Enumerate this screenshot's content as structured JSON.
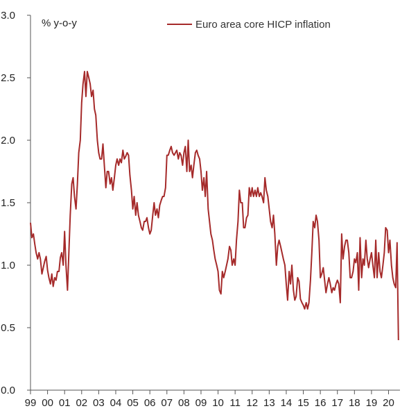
{
  "chart_data": {
    "type": "line",
    "title": "",
    "unit_label": "% y-o-y",
    "xlabel": "",
    "ylabel": "",
    "ylim": [
      0.0,
      3.0
    ],
    "yticks": [
      "0.0",
      "0.5",
      "1.0",
      "1.5",
      "2.0",
      "2.5",
      "3.0"
    ],
    "xlim": [
      1999.0,
      2020.67
    ],
    "xticks": [
      "99",
      "00",
      "01",
      "02",
      "03",
      "04",
      "05",
      "06",
      "07",
      "08",
      "09",
      "10",
      "11",
      "12",
      "13",
      "14",
      "15",
      "16",
      "17",
      "18",
      "19",
      "20"
    ],
    "grid": false,
    "legend_position": "top-right",
    "series": [
      {
        "name": "Euro area core HICP inflation",
        "color": "#a52a2a",
        "points": [
          [
            1999.0,
            1.34
          ],
          [
            1999.08,
            1.22
          ],
          [
            1999.17,
            1.25
          ],
          [
            1999.25,
            1.17
          ],
          [
            1999.33,
            1.1
          ],
          [
            1999.42,
            1.05
          ],
          [
            1999.5,
            1.1
          ],
          [
            1999.58,
            1.05
          ],
          [
            1999.67,
            0.93
          ],
          [
            1999.75,
            0.98
          ],
          [
            1999.83,
            1.03
          ],
          [
            1999.92,
            1.07
          ],
          [
            2000.0,
            0.96
          ],
          [
            2000.08,
            0.9
          ],
          [
            2000.17,
            0.85
          ],
          [
            2000.25,
            0.93
          ],
          [
            2000.33,
            0.83
          ],
          [
            2000.42,
            0.9
          ],
          [
            2000.5,
            0.88
          ],
          [
            2000.58,
            0.95
          ],
          [
            2000.67,
            0.95
          ],
          [
            2000.75,
            1.06
          ],
          [
            2000.83,
            1.1
          ],
          [
            2000.92,
            1.0
          ],
          [
            2001.0,
            1.27
          ],
          [
            2001.08,
            1.0
          ],
          [
            2001.17,
            0.8
          ],
          [
            2001.25,
            1.1
          ],
          [
            2001.33,
            1.4
          ],
          [
            2001.42,
            1.65
          ],
          [
            2001.5,
            1.7
          ],
          [
            2001.58,
            1.55
          ],
          [
            2001.67,
            1.45
          ],
          [
            2001.75,
            1.65
          ],
          [
            2001.83,
            1.9
          ],
          [
            2001.92,
            2.0
          ],
          [
            2002.0,
            2.3
          ],
          [
            2002.08,
            2.45
          ],
          [
            2002.17,
            2.55
          ],
          [
            2002.25,
            2.35
          ],
          [
            2002.33,
            2.55
          ],
          [
            2002.42,
            2.5
          ],
          [
            2002.5,
            2.45
          ],
          [
            2002.58,
            2.35
          ],
          [
            2002.67,
            2.4
          ],
          [
            2002.75,
            2.25
          ],
          [
            2002.83,
            2.2
          ],
          [
            2002.92,
            2.0
          ],
          [
            2003.0,
            1.9
          ],
          [
            2003.08,
            1.85
          ],
          [
            2003.17,
            1.85
          ],
          [
            2003.25,
            1.97
          ],
          [
            2003.33,
            1.8
          ],
          [
            2003.42,
            1.62
          ],
          [
            2003.5,
            1.75
          ],
          [
            2003.58,
            1.75
          ],
          [
            2003.67,
            1.65
          ],
          [
            2003.75,
            1.7
          ],
          [
            2003.83,
            1.6
          ],
          [
            2003.92,
            1.7
          ],
          [
            2004.0,
            1.8
          ],
          [
            2004.08,
            1.85
          ],
          [
            2004.17,
            1.8
          ],
          [
            2004.25,
            1.85
          ],
          [
            2004.33,
            1.82
          ],
          [
            2004.42,
            1.92
          ],
          [
            2004.5,
            1.85
          ],
          [
            2004.58,
            1.87
          ],
          [
            2004.67,
            1.9
          ],
          [
            2004.75,
            1.88
          ],
          [
            2004.83,
            1.72
          ],
          [
            2004.92,
            1.6
          ],
          [
            2005.0,
            1.45
          ],
          [
            2005.08,
            1.55
          ],
          [
            2005.17,
            1.4
          ],
          [
            2005.25,
            1.5
          ],
          [
            2005.33,
            1.4
          ],
          [
            2005.42,
            1.35
          ],
          [
            2005.5,
            1.3
          ],
          [
            2005.58,
            1.28
          ],
          [
            2005.67,
            1.35
          ],
          [
            2005.75,
            1.35
          ],
          [
            2005.83,
            1.38
          ],
          [
            2005.92,
            1.3
          ],
          [
            2006.0,
            1.25
          ],
          [
            2006.08,
            1.28
          ],
          [
            2006.17,
            1.4
          ],
          [
            2006.25,
            1.5
          ],
          [
            2006.33,
            1.4
          ],
          [
            2006.42,
            1.45
          ],
          [
            2006.5,
            1.38
          ],
          [
            2006.58,
            1.48
          ],
          [
            2006.67,
            1.52
          ],
          [
            2006.75,
            1.55
          ],
          [
            2006.83,
            1.55
          ],
          [
            2006.92,
            1.62
          ],
          [
            2007.0,
            1.88
          ],
          [
            2007.08,
            1.88
          ],
          [
            2007.17,
            1.92
          ],
          [
            2007.25,
            1.95
          ],
          [
            2007.33,
            1.9
          ],
          [
            2007.42,
            1.88
          ],
          [
            2007.5,
            1.9
          ],
          [
            2007.58,
            1.92
          ],
          [
            2007.67,
            1.85
          ],
          [
            2007.75,
            1.9
          ],
          [
            2007.83,
            1.88
          ],
          [
            2007.92,
            1.8
          ],
          [
            2008.0,
            1.9
          ],
          [
            2008.08,
            1.95
          ],
          [
            2008.17,
            1.75
          ],
          [
            2008.25,
            2.0
          ],
          [
            2008.33,
            1.75
          ],
          [
            2008.42,
            1.8
          ],
          [
            2008.5,
            1.7
          ],
          [
            2008.58,
            1.8
          ],
          [
            2008.67,
            1.9
          ],
          [
            2008.75,
            1.92
          ],
          [
            2008.83,
            1.88
          ],
          [
            2008.92,
            1.85
          ],
          [
            2009.0,
            1.75
          ],
          [
            2009.08,
            1.6
          ],
          [
            2009.17,
            1.7
          ],
          [
            2009.25,
            1.55
          ],
          [
            2009.33,
            1.75
          ],
          [
            2009.42,
            1.45
          ],
          [
            2009.5,
            1.35
          ],
          [
            2009.58,
            1.25
          ],
          [
            2009.67,
            1.2
          ],
          [
            2009.75,
            1.12
          ],
          [
            2009.83,
            1.05
          ],
          [
            2009.92,
            1.0
          ],
          [
            2010.0,
            0.95
          ],
          [
            2010.08,
            0.8
          ],
          [
            2010.17,
            0.77
          ],
          [
            2010.25,
            0.95
          ],
          [
            2010.33,
            0.9
          ],
          [
            2010.42,
            0.95
          ],
          [
            2010.5,
            1.0
          ],
          [
            2010.58,
            1.05
          ],
          [
            2010.67,
            1.15
          ],
          [
            2010.75,
            1.12
          ],
          [
            2010.83,
            1.0
          ],
          [
            2010.92,
            1.05
          ],
          [
            2011.0,
            1.0
          ],
          [
            2011.08,
            1.2
          ],
          [
            2011.17,
            1.35
          ],
          [
            2011.25,
            1.6
          ],
          [
            2011.33,
            1.5
          ],
          [
            2011.42,
            1.5
          ],
          [
            2011.5,
            1.3
          ],
          [
            2011.58,
            1.3
          ],
          [
            2011.67,
            1.38
          ],
          [
            2011.75,
            1.4
          ],
          [
            2011.83,
            1.62
          ],
          [
            2011.92,
            1.55
          ],
          [
            2012.0,
            1.62
          ],
          [
            2012.08,
            1.55
          ],
          [
            2012.17,
            1.6
          ],
          [
            2012.25,
            1.55
          ],
          [
            2012.33,
            1.62
          ],
          [
            2012.42,
            1.55
          ],
          [
            2012.5,
            1.58
          ],
          [
            2012.58,
            1.55
          ],
          [
            2012.67,
            1.5
          ],
          [
            2012.75,
            1.7
          ],
          [
            2012.83,
            1.6
          ],
          [
            2012.92,
            1.55
          ],
          [
            2013.0,
            1.45
          ],
          [
            2013.08,
            1.35
          ],
          [
            2013.17,
            1.3
          ],
          [
            2013.25,
            1.4
          ],
          [
            2013.33,
            1.25
          ],
          [
            2013.42,
            1.0
          ],
          [
            2013.5,
            1.15
          ],
          [
            2013.58,
            1.2
          ],
          [
            2013.67,
            1.15
          ],
          [
            2013.75,
            1.1
          ],
          [
            2013.83,
            1.05
          ],
          [
            2013.92,
            1.0
          ],
          [
            2014.0,
            0.85
          ],
          [
            2014.08,
            0.72
          ],
          [
            2014.17,
            0.95
          ],
          [
            2014.25,
            0.85
          ],
          [
            2014.33,
            1.0
          ],
          [
            2014.42,
            0.8
          ],
          [
            2014.5,
            0.72
          ],
          [
            2014.58,
            0.75
          ],
          [
            2014.67,
            0.9
          ],
          [
            2014.75,
            0.87
          ],
          [
            2014.83,
            0.73
          ],
          [
            2014.92,
            0.7
          ],
          [
            2015.0,
            0.68
          ],
          [
            2015.08,
            0.65
          ],
          [
            2015.17,
            0.7
          ],
          [
            2015.25,
            0.65
          ],
          [
            2015.33,
            0.7
          ],
          [
            2015.42,
            0.88
          ],
          [
            2015.5,
            1.1
          ],
          [
            2015.58,
            1.35
          ],
          [
            2015.67,
            1.3
          ],
          [
            2015.75,
            1.4
          ],
          [
            2015.83,
            1.35
          ],
          [
            2015.92,
            1.2
          ],
          [
            2016.0,
            0.9
          ],
          [
            2016.08,
            0.93
          ],
          [
            2016.17,
            0.98
          ],
          [
            2016.25,
            0.88
          ],
          [
            2016.33,
            0.78
          ],
          [
            2016.42,
            0.85
          ],
          [
            2016.5,
            0.9
          ],
          [
            2016.58,
            0.85
          ],
          [
            2016.67,
            0.78
          ],
          [
            2016.75,
            0.82
          ],
          [
            2016.83,
            0.8
          ],
          [
            2016.92,
            0.85
          ],
          [
            2017.0,
            0.88
          ],
          [
            2017.08,
            0.85
          ],
          [
            2017.17,
            0.7
          ],
          [
            2017.25,
            1.25
          ],
          [
            2017.33,
            1.05
          ],
          [
            2017.42,
            1.15
          ],
          [
            2017.5,
            1.2
          ],
          [
            2017.58,
            1.2
          ],
          [
            2017.67,
            1.1
          ],
          [
            2017.75,
            0.9
          ],
          [
            2017.83,
            0.9
          ],
          [
            2017.92,
            0.95
          ],
          [
            2018.0,
            1.05
          ],
          [
            2018.08,
            1.02
          ],
          [
            2018.17,
            1.1
          ],
          [
            2018.25,
            0.8
          ],
          [
            2018.33,
            1.22
          ],
          [
            2018.42,
            0.9
          ],
          [
            2018.5,
            1.05
          ],
          [
            2018.58,
            1.0
          ],
          [
            2018.67,
            1.2
          ],
          [
            2018.75,
            1.05
          ],
          [
            2018.83,
            0.98
          ],
          [
            2018.92,
            1.05
          ],
          [
            2019.0,
            1.1
          ],
          [
            2019.08,
            1.0
          ],
          [
            2019.17,
            0.9
          ],
          [
            2019.25,
            1.2
          ],
          [
            2019.33,
            0.9
          ],
          [
            2019.42,
            1.1
          ],
          [
            2019.5,
            0.95
          ],
          [
            2019.58,
            0.9
          ],
          [
            2019.67,
            1.0
          ],
          [
            2019.75,
            1.1
          ],
          [
            2019.83,
            1.3
          ],
          [
            2019.92,
            1.28
          ],
          [
            2020.0,
            1.1
          ],
          [
            2020.08,
            1.2
          ],
          [
            2020.17,
            1.0
          ],
          [
            2020.25,
            0.9
          ],
          [
            2020.33,
            0.85
          ],
          [
            2020.42,
            0.82
          ],
          [
            2020.5,
            1.18
          ],
          [
            2020.58,
            0.4
          ]
        ]
      }
    ]
  }
}
